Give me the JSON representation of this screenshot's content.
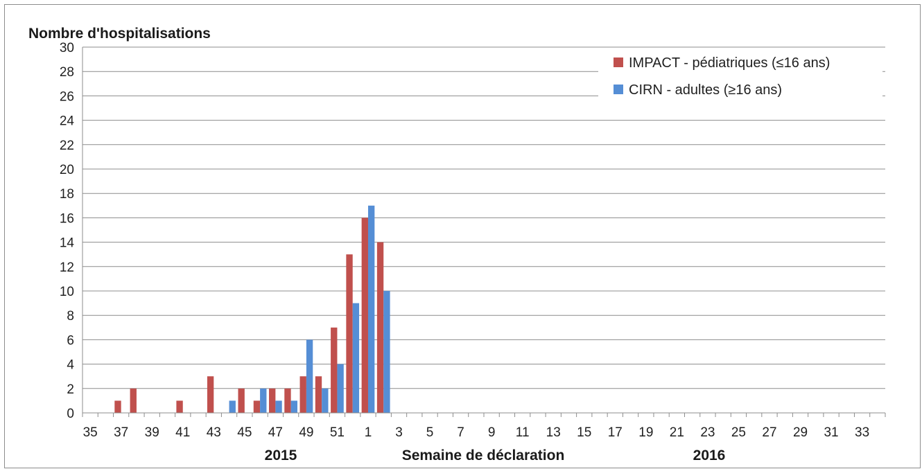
{
  "chart_data": {
    "type": "bar",
    "title": "",
    "ylabel": "Nombre d'hospitalisations",
    "xlabel": "Semaine de déclaration",
    "year_labels": [
      "2015",
      "2016"
    ],
    "ylim": [
      0,
      30
    ],
    "yticks": [
      0,
      2,
      4,
      6,
      8,
      10,
      12,
      14,
      16,
      18,
      20,
      22,
      24,
      26,
      28,
      30
    ],
    "grid": true,
    "legend_position": "top-right",
    "categories": [
      "35",
      "36",
      "37",
      "38",
      "39",
      "40",
      "41",
      "42",
      "43",
      "44",
      "45",
      "46",
      "47",
      "48",
      "49",
      "50",
      "51",
      "52",
      "1",
      "2",
      "3",
      "4",
      "5",
      "6",
      "7",
      "8",
      "9",
      "10",
      "11",
      "12",
      "13",
      "14",
      "15",
      "16",
      "17",
      "18",
      "19",
      "20",
      "21",
      "22",
      "23",
      "24",
      "25",
      "26",
      "27",
      "28",
      "29",
      "30",
      "31",
      "32",
      "33",
      "34"
    ],
    "x_tick_labels": [
      "35",
      "",
      "37",
      "",
      "39",
      "",
      "41",
      "",
      "43",
      "",
      "45",
      "",
      "47",
      "",
      "49",
      "",
      "51",
      "",
      "1",
      "",
      "3",
      "",
      "5",
      "",
      "7",
      "",
      "9",
      "",
      "11",
      "",
      "13",
      "",
      "15",
      "",
      "17",
      "",
      "19",
      "",
      "21",
      "",
      "23",
      "",
      "25",
      "",
      "27",
      "",
      "29",
      "",
      "31",
      "",
      "33",
      ""
    ],
    "series": [
      {
        "name": "IMPACT - pédiatriques (≤16 ans)",
        "color": "#c0504d",
        "values": [
          0,
          0,
          1,
          2,
          0,
          0,
          1,
          0,
          3,
          0,
          2,
          1,
          2,
          2,
          3,
          3,
          7,
          13,
          16,
          14,
          0,
          0,
          0,
          0,
          0,
          0,
          0,
          0,
          0,
          0,
          0,
          0,
          0,
          0,
          0,
          0,
          0,
          0,
          0,
          0,
          0,
          0,
          0,
          0,
          0,
          0,
          0,
          0,
          0,
          0,
          0,
          0
        ]
      },
      {
        "name": "CIRN - adultes (≥16 ans)",
        "color": "#558ed5",
        "values": [
          0,
          0,
          0,
          0,
          0,
          0,
          0,
          0,
          0,
          1,
          0,
          2,
          1,
          1,
          6,
          2,
          4,
          9,
          17,
          10,
          0,
          0,
          0,
          0,
          0,
          0,
          0,
          0,
          0,
          0,
          0,
          0,
          0,
          0,
          0,
          0,
          0,
          0,
          0,
          0,
          0,
          0,
          0,
          0,
          0,
          0,
          0,
          0,
          0,
          0,
          0,
          0
        ]
      }
    ]
  }
}
